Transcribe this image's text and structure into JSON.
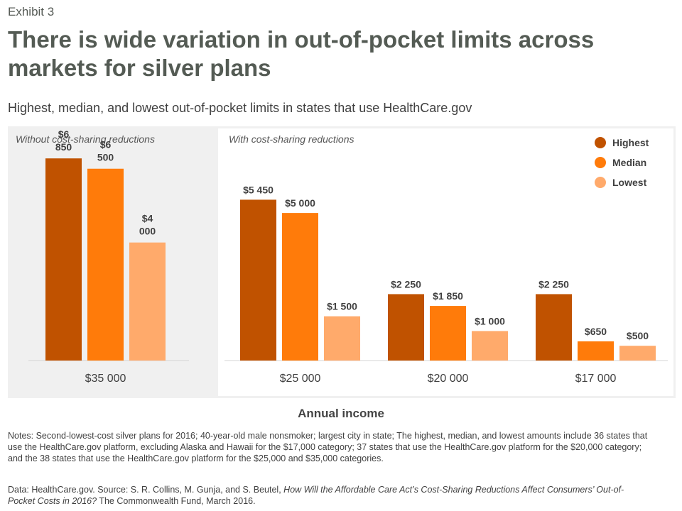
{
  "header": {
    "exhibit": "Exhibit 3",
    "title": "There is wide variation in out-of-pocket limits across markets for silver plans",
    "subtitle": "Highest, median, and lowest out-of-pocket limits in states that use HealthCare.gov"
  },
  "panels": {
    "left_label": "Without cost-sharing reductions",
    "right_label": "With cost-sharing reductions"
  },
  "colors": {
    "highest": "#C05200",
    "median": "#FF7B0A",
    "lowest": "#FFAA6B",
    "panel_bg": "#F0F0F0"
  },
  "chart_data": {
    "type": "bar",
    "xlabel": "Annual income",
    "ylabel": "",
    "categories": [
      "$35 000",
      "$25 000",
      "$20 000",
      "$17 000"
    ],
    "series": [
      {
        "name": "Highest",
        "values": [
          6850,
          5450,
          2250,
          2250
        ],
        "labels": [
          "$6 850",
          "$5 450",
          "$2 250",
          "$2 250"
        ]
      },
      {
        "name": "Median",
        "values": [
          6500,
          5000,
          1850,
          650
        ],
        "labels": [
          "$6 500",
          "$5 000",
          "$1 850",
          "$650"
        ]
      },
      {
        "name": "Lowest",
        "values": [
          4000,
          1500,
          1000,
          500
        ],
        "labels": [
          "$4 000",
          "$1 500",
          "$1 000",
          "$500"
        ]
      }
    ],
    "ylim": [
      0,
      7600
    ],
    "legend": "top-right",
    "grid": false
  },
  "notes": "Notes: Second-lowest-cost silver plans for 2016; 40-year-old male nonsmoker; largest city in state; The highest, median, and lowest amounts include 36 states that use the HealthCare.gov platform, excluding Alaska and Hawaii for the $17,000 category; 37 states that use the HealthCare.gov platform for the $20,000 category; and the 38 states that use the HealthCare.gov platform for the $25,000 and $35,000 categories.",
  "source": {
    "prefix": "Data: HealthCare.gov. Source: S. R. Collins, M. Gunja, and S. Beutel,",
    "work": "How Will the Affordable Care Act’s Cost-Sharing Reductions Affect Consumers’ Out-of-Pocket Costs in 2016?",
    "suffix": "The Commonwealth Fund, March 2016."
  }
}
